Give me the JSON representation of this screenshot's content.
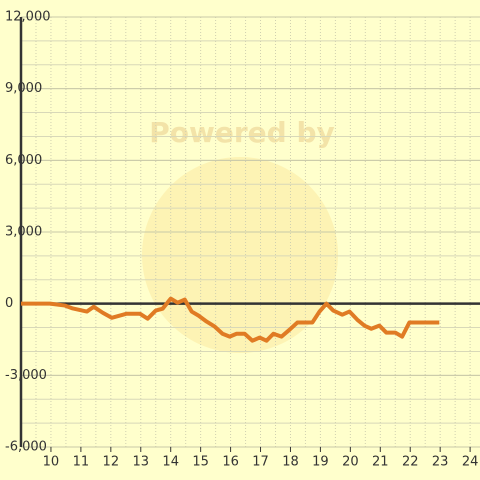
{
  "chart_data": {
    "type": "line",
    "watermark": "Powered by",
    "x": [
      9,
      9.97,
      10.47,
      10.73,
      11.2,
      11.43,
      11.73,
      12.03,
      12.53,
      12.97,
      13.23,
      13.5,
      13.73,
      14,
      14.23,
      14.47,
      14.7,
      14.93,
      15.2,
      15.47,
      15.73,
      15.97,
      16.2,
      16.47,
      16.73,
      16.97,
      17.2,
      17.43,
      17.7,
      17.97,
      18.23,
      18.73,
      18.97,
      19.2,
      19.43,
      19.73,
      19.97,
      20.23,
      20.47,
      20.7,
      20.97,
      21.2,
      21.5,
      21.73,
      21.97,
      22.97
    ],
    "series": [
      {
        "color": "#e07b24",
        "values": [
          0,
          0,
          -80,
          -200,
          -330,
          -130,
          -380,
          -590,
          -420,
          -420,
          -630,
          -290,
          -210,
          210,
          40,
          170,
          -330,
          -500,
          -750,
          -960,
          -1260,
          -1380,
          -1260,
          -1260,
          -1550,
          -1420,
          -1550,
          -1260,
          -1380,
          -1090,
          -790,
          -790,
          -330,
          0,
          -290,
          -460,
          -330,
          -670,
          -920,
          -1050,
          -920,
          -1210,
          -1210,
          -1380,
          -790,
          -790
        ]
      }
    ],
    "xlim": [
      9,
      24.33
    ],
    "xticks": [
      10,
      11,
      12,
      13,
      14,
      15,
      16,
      17,
      18,
      19,
      20,
      21,
      22,
      23,
      24
    ],
    "ylim": [
      -6000,
      12000
    ],
    "yticks": [
      {
        "value": -6000,
        "label": "-6,000"
      },
      {
        "value": -3000,
        "label": "-3,000"
      },
      0,
      {
        "value": 3000,
        "label": "3,000"
      },
      {
        "value": 6000,
        "label": "6,000"
      },
      {
        "value": 9000,
        "label": "9,000"
      },
      {
        "value": 12000,
        "label": "12,000"
      }
    ],
    "grid": true
  }
}
